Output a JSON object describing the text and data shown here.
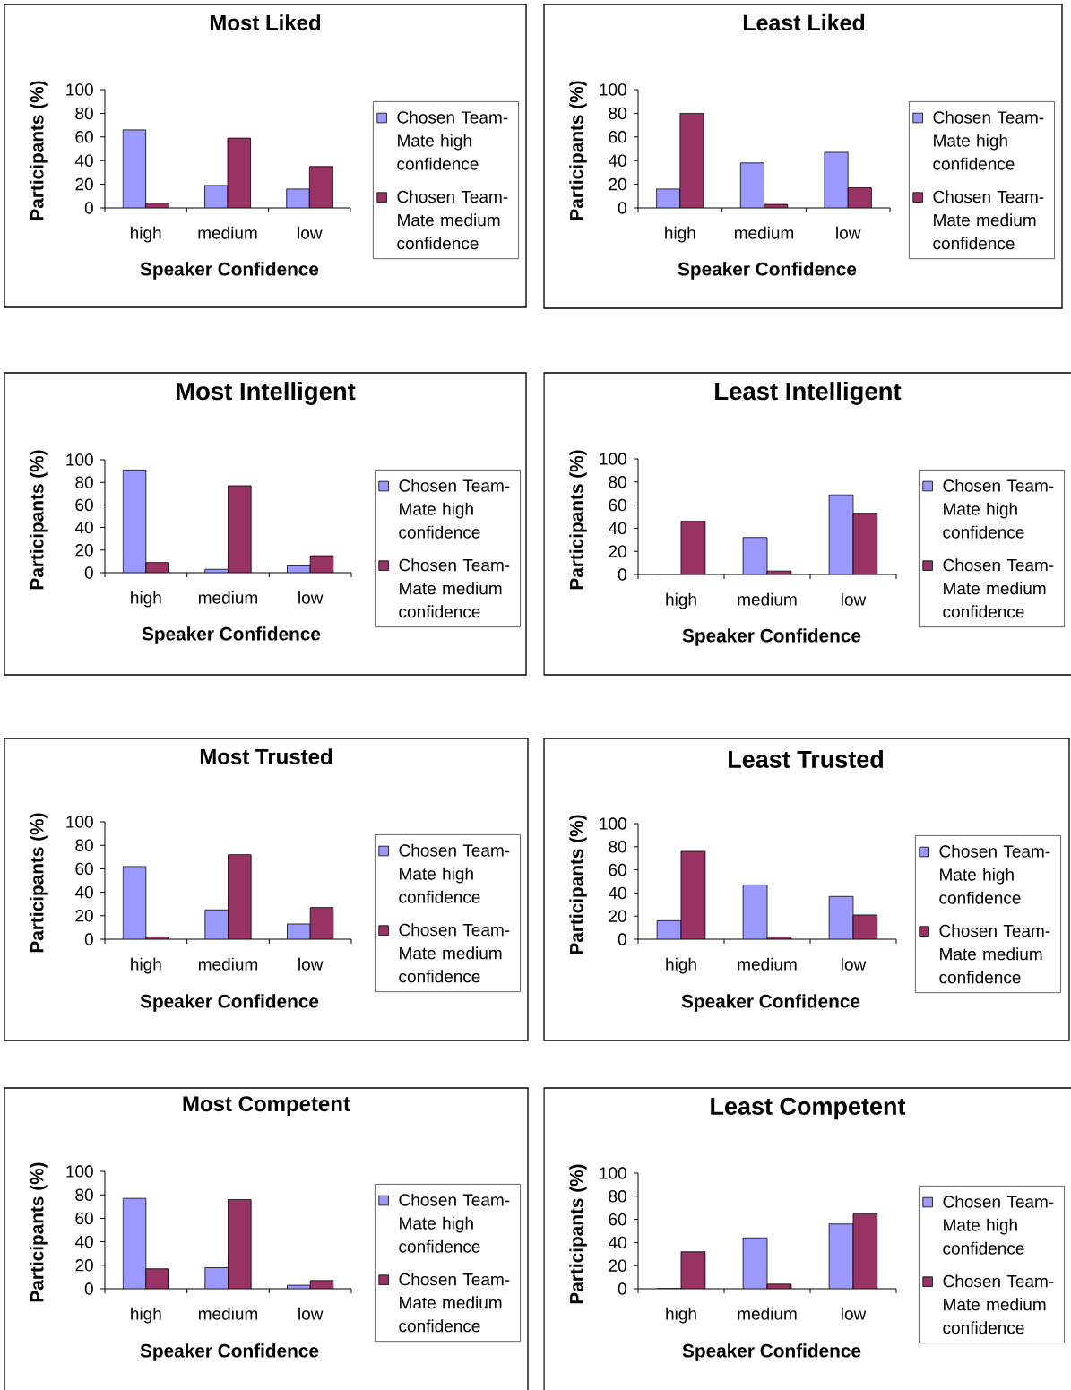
{
  "chart_data": [
    {
      "type": "bar",
      "title": "Most Liked",
      "xlabel": "Speaker Confidence",
      "ylabel": "Participants (%)",
      "categories": [
        "high",
        "medium",
        "low"
      ],
      "series": [
        {
          "name": "Chosen Team-Mate high confidence",
          "color": "#9999ff",
          "values": [
            66,
            19,
            16
          ]
        },
        {
          "name": "Chosen Team-Mate medium confidence",
          "color": "#993366",
          "values": [
            4,
            59,
            35
          ]
        }
      ],
      "ylim": [
        0,
        100
      ],
      "yticks": [
        0,
        20,
        40,
        60,
        80,
        100
      ],
      "legend": "right"
    },
    {
      "type": "bar",
      "title": "Least Liked",
      "xlabel": "Speaker Confidence",
      "ylabel": "Participants (%)",
      "categories": [
        "high",
        "medium",
        "low"
      ],
      "series": [
        {
          "name": "Chosen Team-Mate high confidence",
          "color": "#9999ff",
          "values": [
            16,
            38,
            47
          ]
        },
        {
          "name": "Chosen Team-Mate medium confidence",
          "color": "#993366",
          "values": [
            80,
            3,
            17
          ]
        }
      ],
      "ylim": [
        0,
        100
      ],
      "yticks": [
        0,
        20,
        40,
        60,
        80,
        100
      ],
      "legend": "right"
    },
    {
      "type": "bar",
      "title": "Most Intelligent",
      "xlabel": "Speaker Confidence",
      "ylabel": "Participants (%)",
      "categories": [
        "high",
        "medium",
        "low"
      ],
      "series": [
        {
          "name": "Chosen Team-Mate high confidence",
          "color": "#9999ff",
          "values": [
            91,
            3,
            6
          ]
        },
        {
          "name": "Chosen Team-Mate medium confidence",
          "color": "#993366",
          "values": [
            9,
            77,
            15
          ]
        }
      ],
      "ylim": [
        0,
        100
      ],
      "yticks": [
        0,
        20,
        40,
        60,
        80,
        100
      ],
      "legend": "right"
    },
    {
      "type": "bar",
      "title": "Least Intelligent",
      "xlabel": "Speaker Confidence",
      "ylabel": "Participants (%)",
      "categories": [
        "high",
        "medium",
        "low"
      ],
      "series": [
        {
          "name": "Chosen Team-Mate high confidence",
          "color": "#9999ff",
          "values": [
            0,
            32,
            69
          ]
        },
        {
          "name": "Chosen Team-Mate medium confidence",
          "color": "#993366",
          "values": [
            46,
            3,
            53
          ]
        }
      ],
      "ylim": [
        0,
        100
      ],
      "yticks": [
        0,
        20,
        40,
        60,
        80,
        100
      ],
      "legend": "right"
    },
    {
      "type": "bar",
      "title": "Most Trusted",
      "xlabel": "Speaker Confidence",
      "ylabel": "Participants (%)",
      "categories": [
        "high",
        "medium",
        "low"
      ],
      "series": [
        {
          "name": "Chosen Team-Mate high confidence",
          "color": "#9999ff",
          "values": [
            62,
            25,
            13
          ]
        },
        {
          "name": "Chosen Team-Mate medium confidence",
          "color": "#993366",
          "values": [
            2,
            72,
            27
          ]
        }
      ],
      "ylim": [
        0,
        100
      ],
      "yticks": [
        0,
        20,
        40,
        60,
        80,
        100
      ],
      "legend": "right"
    },
    {
      "type": "bar",
      "title": "Least Trusted",
      "xlabel": "Speaker Confidence",
      "ylabel": "Participants (%)",
      "categories": [
        "high",
        "medium",
        "low"
      ],
      "series": [
        {
          "name": "Chosen Team-Mate high confidence",
          "color": "#9999ff",
          "values": [
            16,
            47,
            37
          ]
        },
        {
          "name": "Chosen Team-Mate medium confidence",
          "color": "#993366",
          "values": [
            76,
            2,
            21
          ]
        }
      ],
      "ylim": [
        0,
        100
      ],
      "yticks": [
        0,
        20,
        40,
        60,
        80,
        100
      ],
      "legend": "right"
    },
    {
      "type": "bar",
      "title": "Most Competent",
      "xlabel": "Speaker Confidence",
      "ylabel": "Participants (%)",
      "categories": [
        "high",
        "medium",
        "low"
      ],
      "series": [
        {
          "name": "Chosen Team-Mate high confidence",
          "color": "#9999ff",
          "values": [
            77,
            18,
            3
          ]
        },
        {
          "name": "Chosen Team-Mate medium confidence",
          "color": "#993366",
          "values": [
            17,
            76,
            7
          ]
        }
      ],
      "ylim": [
        0,
        100
      ],
      "yticks": [
        0,
        20,
        40,
        60,
        80,
        100
      ],
      "legend": "right"
    },
    {
      "type": "bar",
      "title": "Least Competent",
      "xlabel": "Speaker Confidence",
      "ylabel": "Participants (%)",
      "categories": [
        "high",
        "medium",
        "low"
      ],
      "series": [
        {
          "name": "Chosen Team-Mate high confidence",
          "color": "#9999ff",
          "values": [
            0,
            44,
            56
          ]
        },
        {
          "name": "Chosen Team-Mate medium confidence",
          "color": "#993366",
          "values": [
            32,
            4,
            65
          ]
        }
      ],
      "ylim": [
        0,
        100
      ],
      "yticks": [
        0,
        20,
        40,
        60,
        80,
        100
      ],
      "legend": "right"
    }
  ]
}
